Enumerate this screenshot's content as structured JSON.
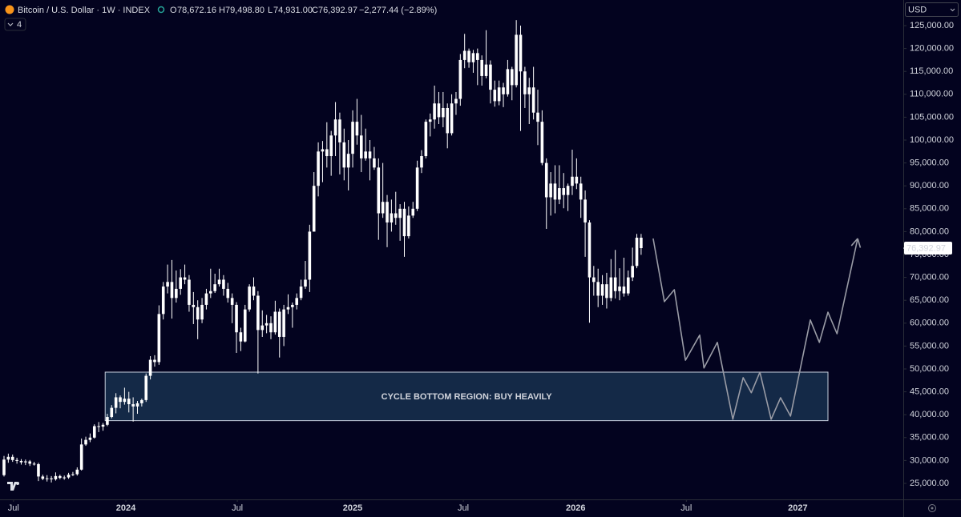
{
  "chart_data": {
    "type": "candlestick",
    "title": "Bitcoin / U.S. Dollar · 1W · INDEX",
    "ohlc_header": {
      "open_label": "O",
      "open": "78,672.16",
      "high_label": "H",
      "high": "79,498.80",
      "low_label": "L",
      "low": "74,931.00",
      "close_label": "C",
      "close": "76,392.97",
      "change": "−2,277.44 (−2.89%)"
    },
    "indicator_count": "4",
    "currency": "USD",
    "last_price_label": "76,392.97",
    "color": "#ffffff",
    "ohlc": [
      [
        26800,
        31000,
        26500,
        30200
      ],
      [
        30200,
        31500,
        29500,
        30800
      ],
      [
        30800,
        31300,
        29700,
        30100
      ],
      [
        30100,
        30600,
        29300,
        29900
      ],
      [
        29900,
        30300,
        29100,
        29600
      ],
      [
        29600,
        30200,
        29000,
        29800
      ],
      [
        29800,
        30100,
        28800,
        29300
      ],
      [
        29300,
        29700,
        28900,
        29200
      ],
      [
        29200,
        29500,
        25500,
        26500
      ],
      [
        26500,
        26900,
        25700,
        26000
      ],
      [
        26000,
        26800,
        25400,
        26100
      ],
      [
        26100,
        26600,
        25200,
        25900
      ],
      [
        25900,
        27400,
        25600,
        26600
      ],
      [
        26600,
        26900,
        25900,
        26200
      ],
      [
        26200,
        26700,
        25800,
        26300
      ],
      [
        26300,
        27300,
        26000,
        26900
      ],
      [
        26900,
        27500,
        26600,
        27000
      ],
      [
        27000,
        28500,
        26700,
        28000
      ],
      [
        28000,
        34800,
        27800,
        33500
      ],
      [
        33500,
        35200,
        33200,
        34500
      ],
      [
        34500,
        35900,
        34000,
        35000
      ],
      [
        35000,
        37900,
        34800,
        37500
      ],
      [
        37500,
        38400,
        36200,
        37400
      ],
      [
        37400,
        38200,
        36500,
        37800
      ],
      [
        37800,
        40200,
        37500,
        39500
      ],
      [
        39500,
        42100,
        39200,
        41500
      ],
      [
        41500,
        44700,
        40300,
        43800
      ],
      [
        43800,
        44200,
        41400,
        42800
      ],
      [
        42800,
        45900,
        42200,
        43500
      ],
      [
        43500,
        45000,
        40500,
        42300
      ],
      [
        42300,
        43800,
        38500,
        41800
      ],
      [
        41800,
        43000,
        40200,
        42500
      ],
      [
        42500,
        43500,
        41800,
        43200
      ],
      [
        43200,
        49000,
        42800,
        48500
      ],
      [
        48500,
        52800,
        47700,
        52000
      ],
      [
        52000,
        53000,
        50500,
        51500
      ],
      [
        51500,
        63900,
        50900,
        62000
      ],
      [
        62000,
        69000,
        60800,
        68000
      ],
      [
        68000,
        72800,
        66500,
        69000
      ],
      [
        69000,
        73800,
        61000,
        65500
      ],
      [
        65500,
        71500,
        64500,
        67500
      ],
      [
        67500,
        71800,
        66200,
        70000
      ],
      [
        70000,
        72800,
        68500,
        69500
      ],
      [
        69500,
        70500,
        62500,
        64000
      ],
      [
        64000,
        66800,
        59800,
        63500
      ],
      [
        63500,
        65000,
        56500,
        60800
      ],
      [
        60800,
        65500,
        60000,
        64000
      ],
      [
        64000,
        67500,
        63000,
        66500
      ],
      [
        66500,
        71900,
        65500,
        67000
      ],
      [
        67000,
        70800,
        66600,
        68500
      ],
      [
        68500,
        71900,
        68000,
        69500
      ],
      [
        69500,
        70500,
        66000,
        67500
      ],
      [
        67500,
        68800,
        64500,
        65500
      ],
      [
        65500,
        66500,
        60000,
        64000
      ],
      [
        64000,
        64600,
        53500,
        58000
      ],
      [
        58000,
        59000,
        53900,
        56000
      ],
      [
        56000,
        64000,
        55800,
        63000
      ],
      [
        63000,
        68500,
        62500,
        68000
      ],
      [
        68000,
        70000,
        65000,
        66000
      ],
      [
        66000,
        67000,
        49000,
        58500
      ],
      [
        58500,
        62800,
        57000,
        59500
      ],
      [
        59500,
        61800,
        57800,
        60000
      ],
      [
        60000,
        61500,
        56500,
        58000
      ],
      [
        58000,
        64900,
        57500,
        62500
      ],
      [
        62500,
        63200,
        52500,
        57000
      ],
      [
        57000,
        64000,
        55000,
        63000
      ],
      [
        63000,
        66300,
        62000,
        63500
      ],
      [
        63500,
        64500,
        59000,
        64000
      ],
      [
        64000,
        66500,
        63000,
        65500
      ],
      [
        65500,
        69500,
        65000,
        68000
      ],
      [
        68000,
        73600,
        67500,
        69500
      ],
      [
        69500,
        81500,
        66800,
        80000
      ],
      [
        80000,
        93000,
        80000,
        90000
      ],
      [
        90000,
        99500,
        87700,
        97500
      ],
      [
        97500,
        99800,
        90800,
        98000
      ],
      [
        98000,
        103900,
        94000,
        96500
      ],
      [
        96500,
        102000,
        92200,
        101000
      ],
      [
        101000,
        108300,
        96500,
        104500
      ],
      [
        104500,
        106000,
        92500,
        99500
      ],
      [
        99500,
        102500,
        91200,
        94000
      ],
      [
        94000,
        100000,
        89000,
        97000
      ],
      [
        97000,
        106500,
        94000,
        104000
      ],
      [
        104000,
        109000,
        99000,
        101000
      ],
      [
        101000,
        105500,
        93000,
        96000
      ],
      [
        96000,
        102500,
        95500,
        97500
      ],
      [
        97500,
        100000,
        91200,
        96000
      ],
      [
        96000,
        98500,
        93500,
        94000
      ],
      [
        94000,
        96000,
        78200,
        84000
      ],
      [
        84000,
        95000,
        83000,
        86500
      ],
      [
        86500,
        88000,
        76600,
        82000
      ],
      [
        82000,
        87000,
        80000,
        84000
      ],
      [
        84000,
        88700,
        81500,
        83000
      ],
      [
        83000,
        86000,
        78000,
        85000
      ],
      [
        85000,
        86500,
        74500,
        79000
      ],
      [
        79000,
        85500,
        78500,
        83500
      ],
      [
        83500,
        86500,
        83000,
        85000
      ],
      [
        85000,
        95500,
        84500,
        94000
      ],
      [
        94000,
        97800,
        92800,
        96500
      ],
      [
        96500,
        104500,
        96000,
        104000
      ],
      [
        104000,
        105800,
        100800,
        104500
      ],
      [
        104500,
        111900,
        102500,
        108000
      ],
      [
        108000,
        110500,
        103500,
        105000
      ],
      [
        105000,
        110500,
        102800,
        107000
      ],
      [
        107000,
        108000,
        98200,
        101500
      ],
      [
        101500,
        110000,
        101000,
        108000
      ],
      [
        108000,
        110500,
        105500,
        109000
      ],
      [
        109000,
        118800,
        107500,
        117500
      ],
      [
        117500,
        123200,
        115700,
        119500
      ],
      [
        119500,
        120000,
        115800,
        117000
      ],
      [
        117000,
        119700,
        114700,
        119000
      ],
      [
        119000,
        120000,
        112000,
        117500
      ],
      [
        117500,
        118500,
        111900,
        114000
      ],
      [
        114000,
        124000,
        113500,
        116500
      ],
      [
        116500,
        117400,
        108000,
        111000
      ],
      [
        111000,
        113000,
        107300,
        108500
      ],
      [
        108500,
        113000,
        107600,
        111500
      ],
      [
        111500,
        112500,
        107200,
        110000
      ],
      [
        110000,
        117500,
        109500,
        115500
      ],
      [
        115500,
        116000,
        108700,
        112000
      ],
      [
        112000,
        126200,
        111500,
        123000
      ],
      [
        123000,
        125000,
        102000,
        115000
      ],
      [
        115000,
        116000,
        107000,
        110000
      ],
      [
        110000,
        113600,
        103500,
        111500
      ],
      [
        111500,
        116000,
        104500,
        106000
      ],
      [
        106000,
        111000,
        98900,
        104000
      ],
      [
        104000,
        106500,
        94500,
        95000
      ],
      [
        95000,
        96000,
        80600,
        87500
      ],
      [
        87500,
        93000,
        83500,
        90500
      ],
      [
        90500,
        94500,
        84000,
        87000
      ],
      [
        87000,
        94500,
        86000,
        89500
      ],
      [
        89500,
        92800,
        85100,
        88000
      ],
      [
        88000,
        90500,
        84500,
        90000
      ],
      [
        90000,
        97900,
        88000,
        92000
      ],
      [
        92000,
        96000,
        89300,
        90500
      ],
      [
        90500,
        92000,
        83000,
        87000
      ],
      [
        87000,
        89000,
        74500,
        82000
      ],
      [
        82000,
        82500,
        60100,
        70000
      ],
      [
        70000,
        72500,
        66000,
        69000
      ],
      [
        69000,
        71900,
        63500,
        66000
      ],
      [
        66000,
        70500,
        64000,
        68500
      ],
      [
        68500,
        71000,
        63200,
        65500
      ],
      [
        65500,
        74000,
        64800,
        70000
      ],
      [
        70000,
        76000,
        65400,
        67000
      ],
      [
        67000,
        72000,
        65000,
        68000
      ],
      [
        68000,
        74300,
        65800,
        66500
      ],
      [
        66500,
        71500,
        66000,
        70000
      ],
      [
        70000,
        76500,
        69200,
        72500
      ],
      [
        72500,
        79500,
        72000,
        78670.41
      ],
      [
        78672.16,
        79498.8,
        74931,
        76392.97
      ]
    ],
    "projection": {
      "color": "#9a9ca6",
      "x": [
        150.8,
        153.4,
        155.7,
        158.3,
        161.6,
        162.6,
        165.7,
        169.3,
        171.7,
        173.6,
        175.6,
        178.2,
        180.4,
        182.7,
        187.3,
        189.4,
        191.4,
        193.5,
        198.3
      ],
      "values": [
        78500,
        64700,
        67300,
        51900,
        57400,
        50200,
        55800,
        39000,
        48100,
        44800,
        49300,
        39000,
        43700,
        39700,
        60700,
        55800,
        62400,
        57700,
        78500
      ]
    },
    "zone": {
      "label": "CYCLE BOTTOM REGION: BUY HEAVILY",
      "x": [
        23.5,
        191.4
      ],
      "values": [
        38700,
        49300
      ],
      "color": "#17304f"
    },
    "xlim": [
      -0.93,
      208.9
    ],
    "xticks": [
      {
        "value": 2.2,
        "label": "Jul"
      },
      {
        "value": 28.3,
        "label": "2024"
      },
      {
        "value": 54.2,
        "label": "Jul"
      },
      {
        "value": 81,
        "label": "2025"
      },
      {
        "value": 106.7,
        "label": "Jul"
      },
      {
        "value": 132.8,
        "label": "2026"
      },
      {
        "value": 158.5,
        "label": "Jul"
      },
      {
        "value": 184.4,
        "label": "2027"
      }
    ],
    "ylim": [
      21500,
      130600
    ],
    "yticks": [
      {
        "value": 25000,
        "label": "25,000.00"
      },
      {
        "value": 30000,
        "label": "30,000.00"
      },
      {
        "value": 35000,
        "label": "35,000.00"
      },
      {
        "value": 40000,
        "label": "40,000.00"
      },
      {
        "value": 45000,
        "label": "45,000.00"
      },
      {
        "value": 50000,
        "label": "50,000.00"
      },
      {
        "value": 55000,
        "label": "55,000.00"
      },
      {
        "value": 60000,
        "label": "60,000.00"
      },
      {
        "value": 65000,
        "label": "65,000.00"
      },
      {
        "value": 70000,
        "label": "70,000.00"
      },
      {
        "value": 75000,
        "label": "75,000.00"
      },
      {
        "value": 80000,
        "label": "80,000.00"
      },
      {
        "value": 85000,
        "label": "85,000.00"
      },
      {
        "value": 90000,
        "label": "90,000.00"
      },
      {
        "value": 95000,
        "label": "95,000.00"
      },
      {
        "value": 100000,
        "label": "100,000.00"
      },
      {
        "value": 105000,
        "label": "105,000.00"
      },
      {
        "value": 110000,
        "label": "110,000.00"
      },
      {
        "value": 115000,
        "label": "115,000.00"
      },
      {
        "value": 120000,
        "label": "120,000.00"
      },
      {
        "value": 125000,
        "label": "125,000.00"
      }
    ],
    "grid": false
  }
}
